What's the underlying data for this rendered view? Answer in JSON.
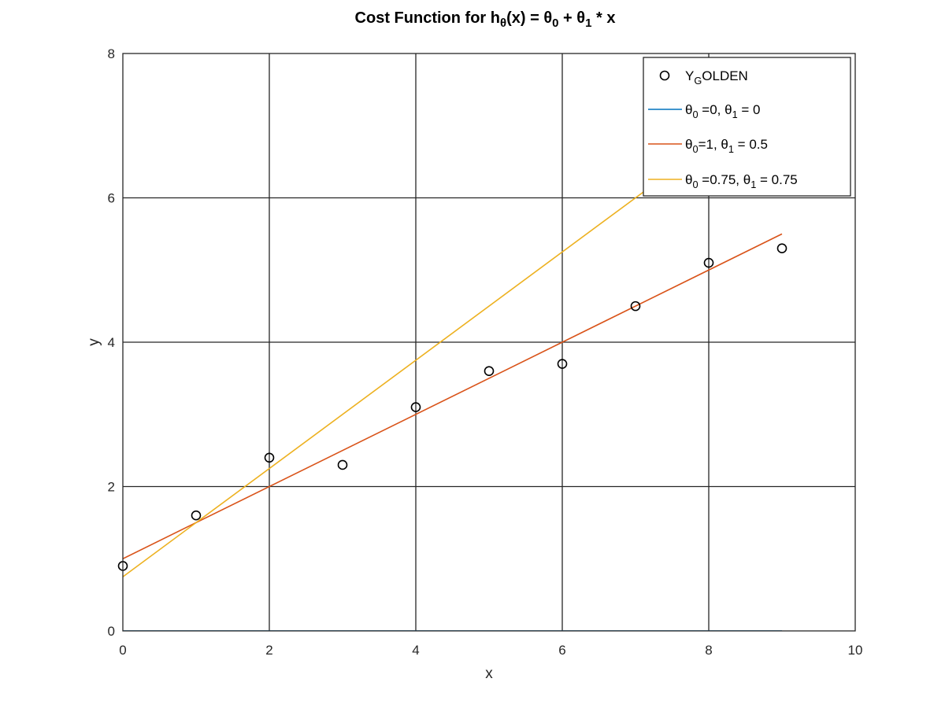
{
  "chart_data": {
    "type": "line",
    "title": {
      "parts": [
        {
          "text": "Cost Function for h"
        },
        {
          "text": "θ",
          "sub": true
        },
        {
          "text": "(x) = θ"
        },
        {
          "text": "0",
          "sub": true
        },
        {
          "text": " + θ"
        },
        {
          "text": "1",
          "sub": true
        },
        {
          "text": " * x"
        }
      ]
    },
    "xlabel": "x",
    "ylabel": "y",
    "xlim": [
      0,
      10
    ],
    "ylim": [
      0,
      8
    ],
    "xticks": [
      0,
      2,
      4,
      6,
      8,
      10
    ],
    "yticks": [
      0,
      2,
      4,
      6,
      8
    ],
    "grid": true,
    "legend_position": "top-right",
    "scatter": {
      "marker": "circle-open",
      "color": "#000000",
      "label_parts": [
        {
          "text": "Y"
        },
        {
          "text": "G",
          "sub": true
        },
        {
          "text": "OLDEN"
        }
      ],
      "x": [
        0,
        1,
        2,
        3,
        4,
        5,
        6,
        7,
        8,
        9
      ],
      "y": [
        0.9,
        1.6,
        2.4,
        2.3,
        3.1,
        3.6,
        3.7,
        4.5,
        5.1,
        5.3
      ]
    },
    "series": [
      {
        "color": "#0072BD",
        "theta0": 0,
        "theta1": 0,
        "x": [
          0,
          9
        ],
        "y": [
          0,
          0
        ],
        "label_parts": [
          {
            "text": "θ"
          },
          {
            "text": "0",
            "sub": true
          },
          {
            "text": " =0,  θ"
          },
          {
            "text": "1",
            "sub": true
          },
          {
            "text": " = 0"
          }
        ]
      },
      {
        "color": "#D95319",
        "theta0": 1,
        "theta1": 0.5,
        "x": [
          0,
          9
        ],
        "y": [
          1,
          5.5
        ],
        "label_parts": [
          {
            "text": "θ"
          },
          {
            "text": "0",
            "sub": true
          },
          {
            "text": "=1,  θ"
          },
          {
            "text": "1",
            "sub": true
          },
          {
            "text": " = 0.5"
          }
        ]
      },
      {
        "color": "#EDB120",
        "theta0": 0.75,
        "theta1": 0.75,
        "x": [
          0,
          9
        ],
        "y": [
          0.75,
          7.5
        ],
        "label_parts": [
          {
            "text": "θ"
          },
          {
            "text": "0",
            "sub": true
          },
          {
            "text": " =0.75,  θ"
          },
          {
            "text": "1",
            "sub": true
          },
          {
            "text": " = 0.75"
          }
        ]
      }
    ]
  }
}
